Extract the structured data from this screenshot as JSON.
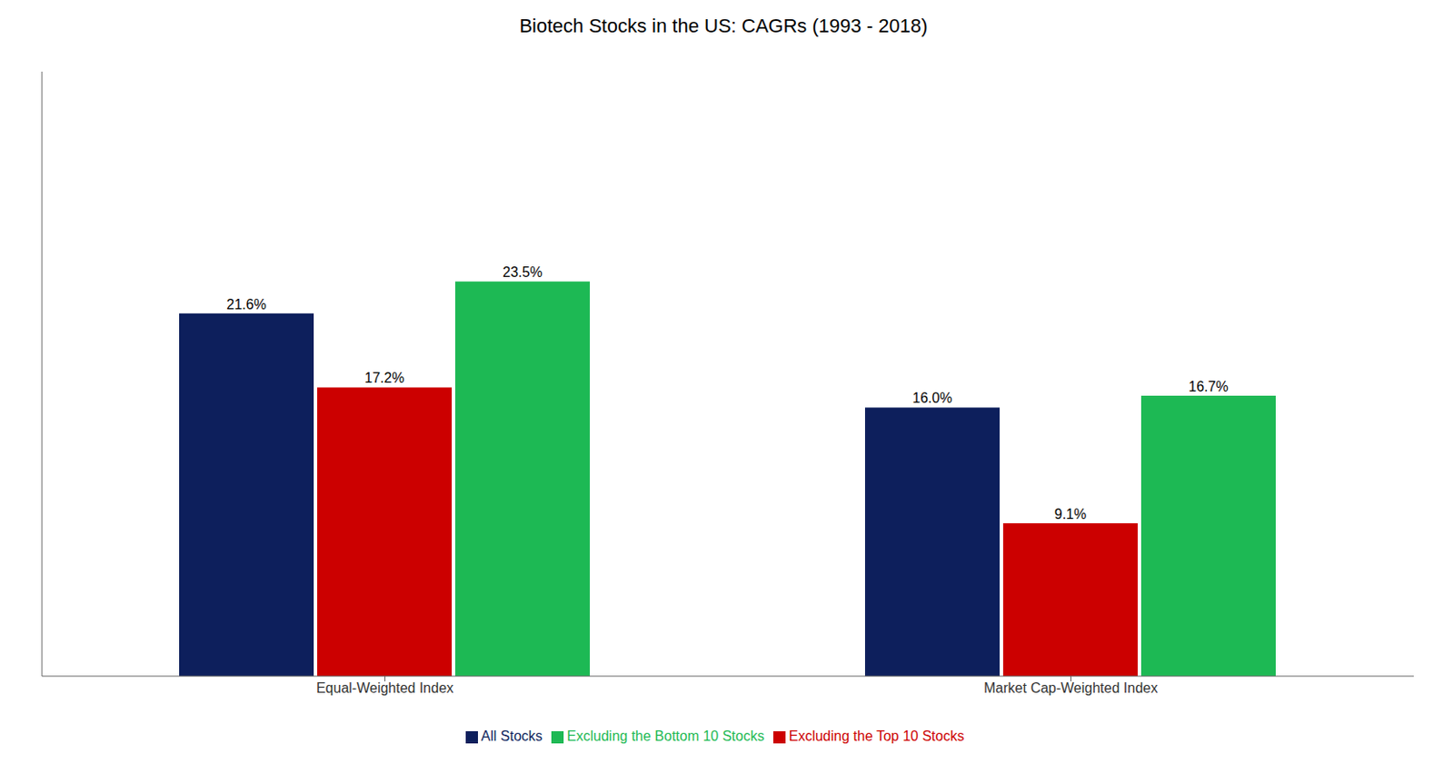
{
  "chart_data": {
    "type": "bar",
    "title": "Biotech Stocks in the US: CAGRs (1993 - 2018)",
    "categories": [
      "Equal-Weighted Index",
      "Market Cap-Weighted Index"
    ],
    "series": [
      {
        "name": "All Stocks",
        "color": "#0D1F5C",
        "values": [
          21.6,
          16.0
        ],
        "value_labels": [
          "21.6%",
          "16.0%"
        ]
      },
      {
        "name": "Excluding the Top 10 Stocks",
        "color": "#CC0000",
        "values": [
          17.2,
          9.1
        ],
        "value_labels": [
          "17.2%",
          "9.1%"
        ]
      },
      {
        "name": "Excluding the Bottom 10 Stocks",
        "color": "#1DB954",
        "values": [
          23.5,
          16.7
        ],
        "value_labels": [
          "23.5%",
          "16.7%"
        ]
      }
    ],
    "ylim": [
      0,
      36
    ],
    "grid": false,
    "legend": "bottom",
    "data_labels": true,
    "tick_labels": "x"
  }
}
